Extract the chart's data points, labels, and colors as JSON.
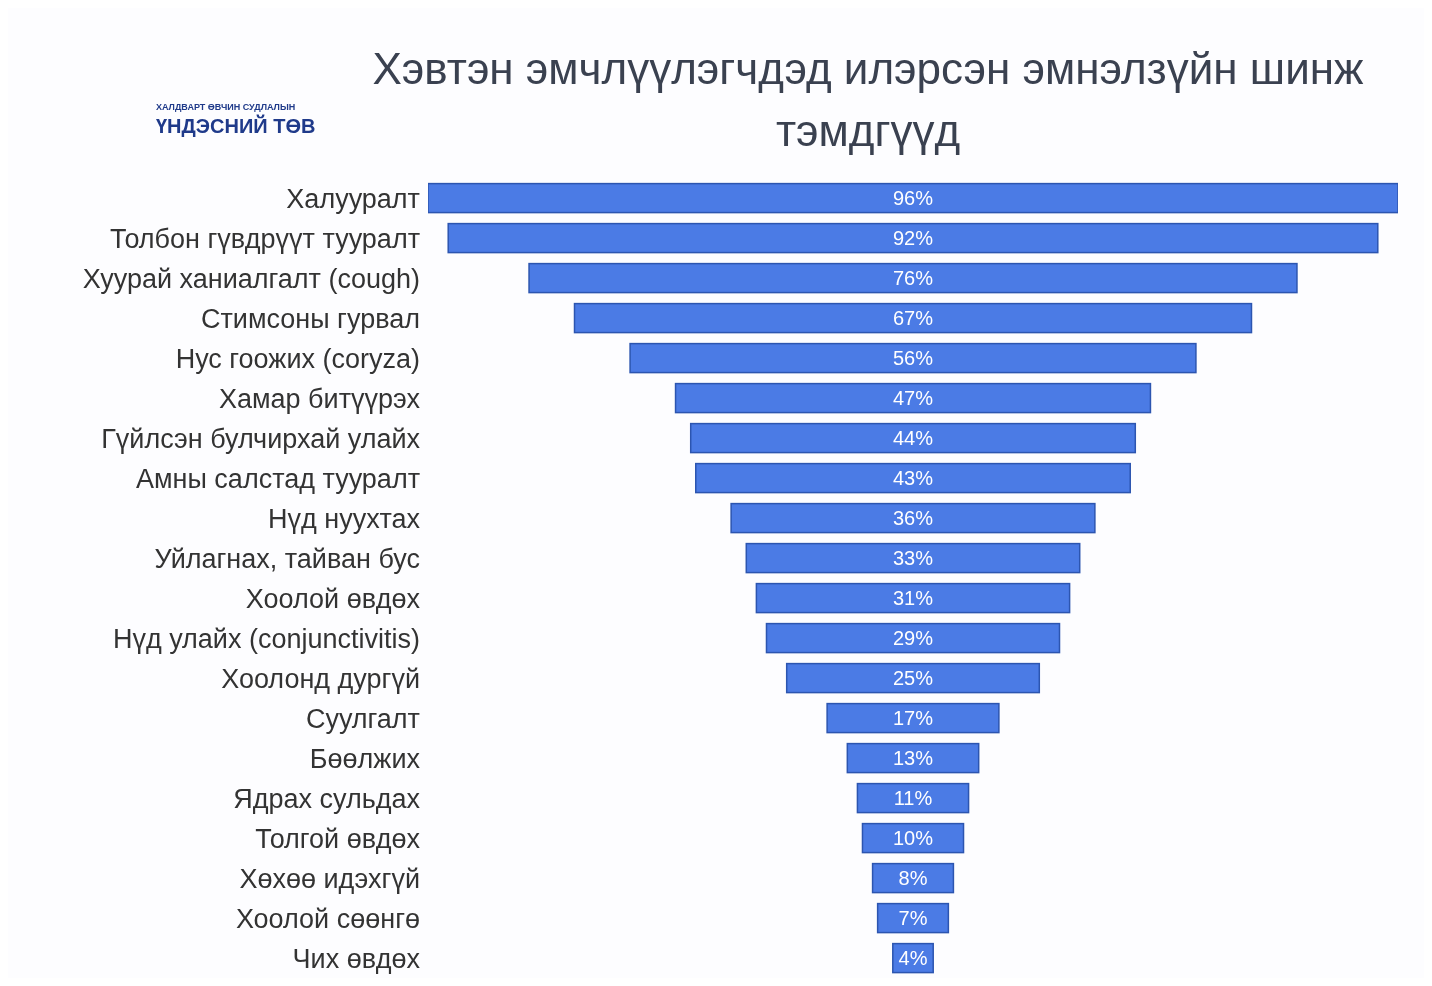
{
  "chart_data": {
    "type": "other",
    "title": "Хэвтэн эмчлүүлэгчдэд илэрсэн эмнэлзүйн шинж тэмдгүүд",
    "annotations": [
      "ХАЛДВАРТ ӨВЧИН СУДЛАЛЫН",
      "ҮНДЭСНИЙ ТӨВ"
    ],
    "categories": [
      "Халууралт",
      "Толбон гүвдрүүт тууралт",
      "Хуурай ханиалгалт (cough)",
      "Стимсоны гурвал",
      "Нус гоожих (coryza)",
      "Хамар битүүрэх",
      "Гүйлсэн булчирхай улайх",
      "Амны салстад тууралт",
      "Нүд нуухтах",
      "Уйлагнах, тайван бус",
      "Хоолой өвдөх",
      "Нүд улайх (conjunctivitis)",
      "Хоолонд дургүй",
      "Суулгалт",
      "Бөөлжих",
      "Ядрах сульдах",
      "Толгой өвдөх",
      "Хөхөө идэхгүй",
      "Хоолой сөөнгө",
      "Чих өвдөх"
    ],
    "values": [
      96,
      92,
      76,
      67,
      56,
      47,
      44,
      43,
      36,
      33,
      31,
      29,
      25,
      17,
      13,
      11,
      10,
      8,
      7,
      4
    ],
    "value_labels": [
      "96%",
      "92%",
      "76%",
      "67%",
      "56%",
      "47%",
      "44%",
      "43%",
      "36%",
      "33%",
      "31%",
      "29%",
      "25%",
      "17%",
      "13%",
      "11%",
      "10%",
      "8%",
      "7%",
      "4%"
    ],
    "color": "#4b7be5"
  }
}
